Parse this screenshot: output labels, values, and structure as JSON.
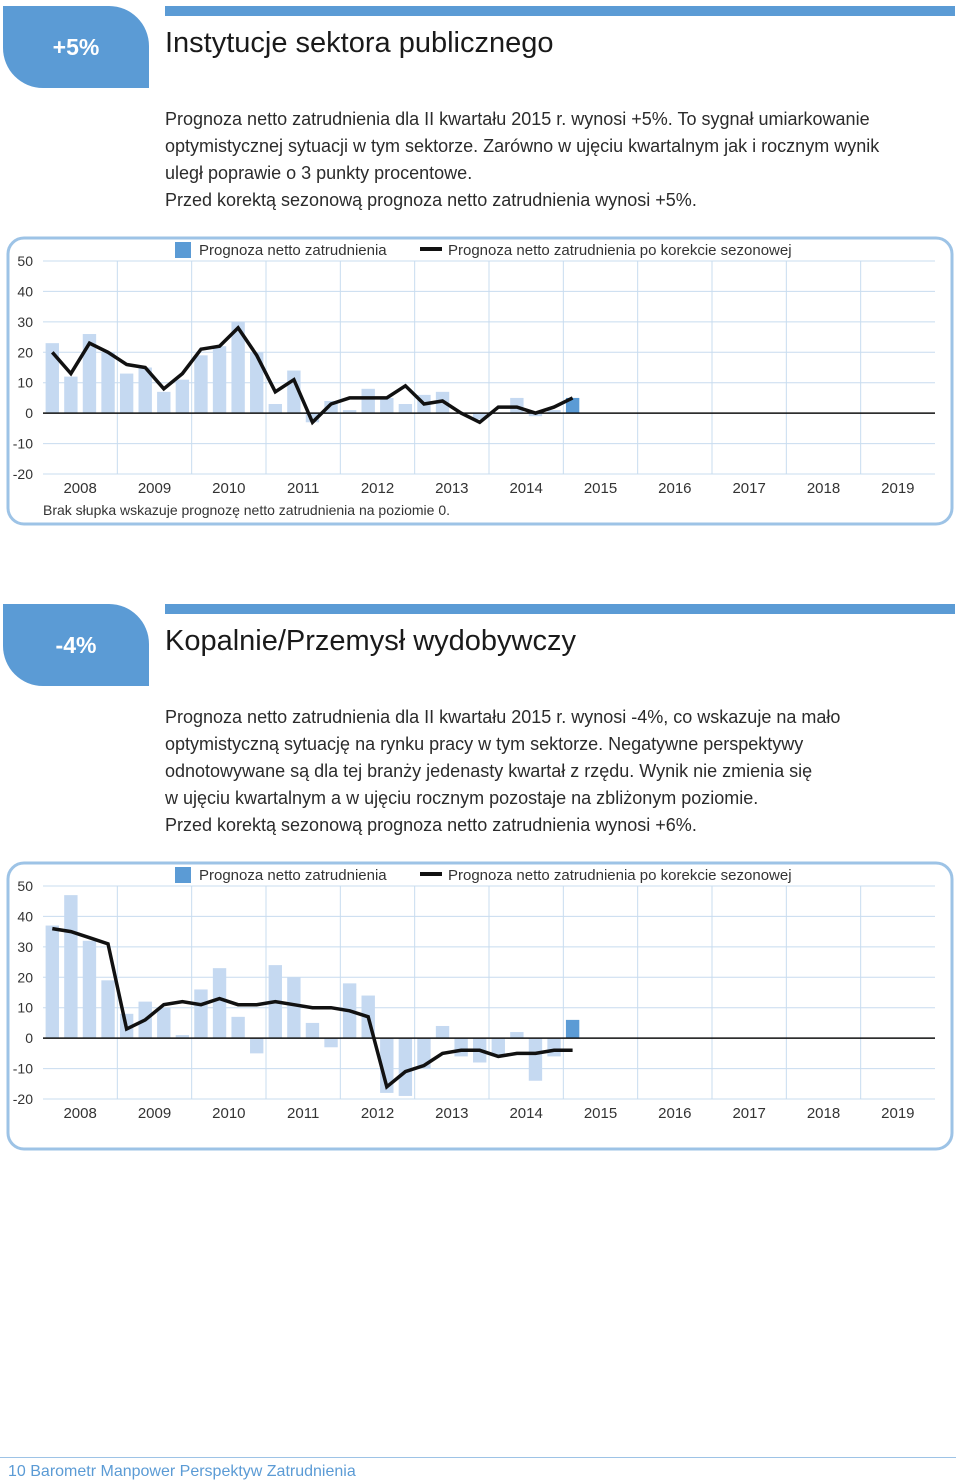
{
  "sections": [
    {
      "badge": "+5%",
      "title": "Instytucje sektora publicznego",
      "paragraph_lines": [
        "Prognoza netto zatrudnienia dla II kwartału 2015 r. wynosi +5%. To sygnał umiarkowanie",
        "optymistycznej sytuacji w tym sektorze. Zarówno w ujęciu kwartalnym jak i rocznym wynik",
        "uległ poprawie o 3 punkty procentowe.",
        "Przed korektą sezonową prognoza netto zatrudnienia wynosi +5%."
      ],
      "note": "Brak słupka wskazuje prognozę netto zatrudnienia na poziomie 0."
    },
    {
      "badge": "-4%",
      "title": "Kopalnie/Przemysł wydobywczy",
      "paragraph_lines": [
        "Prognoza netto zatrudnienia dla II kwartału 2015 r. wynosi -4%, co wskazuje na mało",
        "optymistyczną sytuację na rynku pracy w tym sektorze. Negatywne perspektywy",
        "odnotowywane są dla tej branży jedenasty kwartał z rzędu. Wynik nie zmienia się",
        "w ujęciu kwartalnym a w ujęciu rocznym pozostaje na zbliżonym poziomie.",
        "Przed korektą sezonową prognoza netto zatrudnienia wynosi +6%."
      ],
      "note": ""
    }
  ],
  "footer": {
    "page_number": "10",
    "publication": "Barometr Manpower Perspektyw Zatrudnienia"
  },
  "colors": {
    "accent": "#5b9bd5",
    "bar": "#c5d9f1",
    "bar_current": "#5b9bd5",
    "line": "#111111",
    "frame": "#9dc3e6",
    "grid": "#c8dcef"
  },
  "chart_data": [
    {
      "type": "bar",
      "legend": [
        "Prognoza netto zatrudnienia",
        "Prognoza netto zatrudnienia po korekcie sezonowej"
      ],
      "legend_position": "top",
      "grid": true,
      "x_ticks": [
        "2008",
        "2009",
        "2010",
        "2011",
        "2012",
        "2013",
        "2014",
        "2015",
        "2016",
        "2017",
        "2018",
        "2019"
      ],
      "y_ticks": [
        "50",
        "40",
        "30",
        "20",
        "10",
        "0",
        "-10",
        "-20"
      ],
      "ylim": [
        -20,
        50
      ],
      "quarters_per_year": 4,
      "start_year": "2008",
      "series": [
        {
          "name": "Prognoza netto zatrudnienia",
          "kind": "bar",
          "values": [
            23,
            12,
            26,
            20,
            13,
            15,
            7,
            11,
            19,
            22,
            30,
            20,
            3,
            14,
            -3,
            4,
            1,
            8,
            5,
            3,
            6,
            7,
            0,
            -2,
            0,
            5,
            -1,
            1,
            5
          ]
        },
        {
          "name": "Prognoza netto zatrudnienia po korekcie sezonowej",
          "kind": "line",
          "values": [
            20,
            13,
            23,
            20,
            16,
            15,
            8,
            13,
            21,
            22,
            28,
            19,
            7,
            11,
            -3,
            3,
            5,
            5,
            5,
            9,
            3,
            4,
            0,
            -3,
            2,
            2,
            0,
            2,
            5
          ]
        }
      ]
    },
    {
      "type": "bar",
      "legend": [
        "Prognoza netto zatrudnienia",
        "Prognoza netto zatrudnienia po korekcie sezonowej"
      ],
      "legend_position": "top",
      "grid": true,
      "x_ticks": [
        "2008",
        "2009",
        "2010",
        "2011",
        "2012",
        "2013",
        "2014",
        "2015",
        "2016",
        "2017",
        "2018",
        "2019"
      ],
      "y_ticks": [
        "50",
        "40",
        "30",
        "20",
        "10",
        "0",
        "-10",
        "-20"
      ],
      "ylim": [
        -20,
        50
      ],
      "quarters_per_year": 4,
      "start_year": "2008",
      "series": [
        {
          "name": "Prognoza netto zatrudnienia",
          "kind": "bar",
          "values": [
            37,
            47,
            32,
            19,
            8,
            12,
            10,
            1,
            16,
            23,
            7,
            -5,
            24,
            20,
            5,
            -3,
            18,
            14,
            -18,
            -19,
            -10,
            4,
            -6,
            -8,
            -6,
            2,
            -14,
            -6,
            6
          ]
        },
        {
          "name": "Prognoza netto zatrudnienia po korekcie sezonowej",
          "kind": "line",
          "values": [
            36,
            35,
            33,
            31,
            3,
            6,
            11,
            12,
            11,
            13,
            11,
            11,
            12,
            11,
            10,
            10,
            9,
            7,
            -16,
            -11,
            -9,
            -5,
            -4,
            -4,
            -6,
            -5,
            -5,
            -4,
            -4
          ]
        }
      ]
    }
  ]
}
